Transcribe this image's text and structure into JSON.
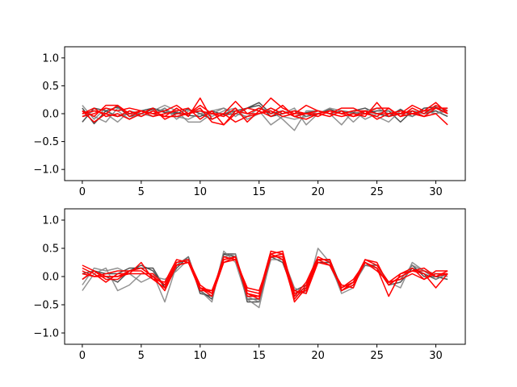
{
  "colors": {
    "dark_series": "#333333",
    "gray_series": "#7f7f7f",
    "red_series": "#ff0000",
    "axes_edge": "#000000"
  },
  "chart_data": [
    {
      "type": "line",
      "xlim": [
        -1.5,
        32.5
      ],
      "ylim": [
        -1.2,
        1.2
      ],
      "xticks": [
        0,
        5,
        10,
        15,
        20,
        25,
        30
      ],
      "xtick_labels": [
        "0",
        "5",
        "10",
        "15",
        "20",
        "25",
        "30"
      ],
      "yticks": [
        -1.0,
        -0.5,
        0.0,
        0.5,
        1.0
      ],
      "ytick_labels": [
        "−1.0",
        "−0.5",
        "0.0",
        "0.5",
        "1.0"
      ],
      "grid": false,
      "x": [
        0,
        1,
        2,
        3,
        4,
        5,
        6,
        7,
        8,
        9,
        10,
        11,
        12,
        13,
        14,
        15,
        16,
        17,
        18,
        19,
        20,
        21,
        22,
        23,
        24,
        25,
        26,
        27,
        28,
        29,
        30,
        31
      ],
      "series": [
        {
          "color": "dark_series",
          "values": [
            -0.15,
            0.1,
            0.05,
            0.12,
            -0.05,
            0.0,
            0.08,
            0.05,
            0.02,
            -0.03,
            -0.05,
            0.05,
            -0.02,
            0.0,
            0.1,
            0.2,
            0.0,
            0.05,
            -0.05,
            0.02,
            0.05,
            0.0,
            0.05,
            0.02,
            0.0,
            0.05,
            0.05,
            -0.15,
            0.05,
            0.0,
            0.05,
            -0.05
          ]
        },
        {
          "color": "dark_series",
          "values": [
            0.1,
            -0.18,
            0.05,
            -0.05,
            0.0,
            0.05,
            0.1,
            0.02,
            0.0,
            0.08,
            0.0,
            -0.1,
            0.0,
            0.05,
            0.1,
            0.15,
            -0.05,
            0.0,
            0.05,
            -0.05,
            0.0,
            0.08,
            0.0,
            0.05,
            0.1,
            0.0,
            -0.05,
            0.08,
            -0.05,
            0.1,
            0.12,
            0.0
          ]
        },
        {
          "color": "gray_series",
          "values": [
            0.15,
            -0.1,
            0.1,
            0.05,
            -0.1,
            0.05,
            0.0,
            0.1,
            -0.05,
            -0.1,
            0.0,
            0.05,
            0.1,
            -0.05,
            0.1,
            0.05,
            -0.2,
            -0.05,
            -0.1,
            -0.05,
            0.05,
            0.0,
            -0.2,
            0.05,
            -0.1,
            0.0,
            0.05,
            0.0,
            0.05,
            0.0,
            0.1,
            0.0
          ]
        },
        {
          "color": "gray_series",
          "values": [
            0.05,
            -0.05,
            -0.15,
            0.1,
            0.0,
            -0.05,
            0.05,
            0.15,
            0.05,
            -0.15,
            -0.15,
            0.0,
            0.1,
            0.0,
            -0.05,
            0.1,
            0.05,
            -0.1,
            -0.3,
            0.05,
            0.05,
            0.0,
            0.05,
            -0.15,
            0.05,
            -0.05,
            -0.15,
            0.05,
            0.0,
            0.05,
            0.0,
            0.1
          ]
        },
        {
          "color": "gray_series",
          "values": [
            -0.05,
            0.05,
            0.0,
            -0.15,
            0.05,
            0.0,
            -0.05,
            0.1,
            -0.1,
            0.05,
            0.05,
            -0.05,
            0.05,
            0.1,
            -0.1,
            0.0,
            0.1,
            0.0,
            0.1,
            -0.2,
            0.0,
            0.1,
            0.05,
            0.0,
            0.05,
            0.1,
            0.0,
            0.0,
            -0.05,
            0.05,
            0.0,
            0.05
          ]
        },
        {
          "color": "red_series",
          "values": [
            0.0,
            0.05,
            0.0,
            0.15,
            -0.05,
            0.05,
            0.0,
            -0.05,
            0.1,
            -0.05,
            0.28,
            -0.1,
            0.0,
            0.22,
            0.0,
            0.0,
            0.1,
            0.0,
            0.05,
            0.0,
            0.05,
            0.0,
            0.1,
            0.1,
            0.0,
            0.1,
            0.1,
            -0.05,
            0.0,
            0.05,
            0.2,
            0.0
          ]
        },
        {
          "color": "red_series",
          "values": [
            0.05,
            -0.05,
            0.15,
            0.15,
            0.0,
            0.05,
            0.0,
            0.05,
            0.15,
            0.0,
            0.1,
            -0.15,
            -0.2,
            0.0,
            0.1,
            0.05,
            0.28,
            0.1,
            0.0,
            0.15,
            0.05,
            0.0,
            -0.05,
            0.0,
            -0.05,
            0.2,
            -0.05,
            0.0,
            0.15,
            0.05,
            0.1,
            0.1
          ]
        },
        {
          "color": "red_series",
          "values": [
            -0.05,
            0.0,
            0.1,
            0.05,
            0.1,
            0.05,
            -0.05,
            0.0,
            0.05,
            0.1,
            -0.1,
            0.05,
            -0.2,
            0.05,
            0.0,
            0.1,
            0.0,
            0.15,
            -0.05,
            -0.1,
            0.0,
            -0.05,
            0.05,
            -0.05,
            0.0,
            -0.05,
            0.1,
            -0.05,
            0.1,
            0.0,
            0.15,
            0.05
          ]
        },
        {
          "color": "red_series",
          "values": [
            0.05,
            -0.15,
            0.0,
            -0.05,
            0.05,
            -0.05,
            0.05,
            -0.05,
            -0.05,
            0.0,
            0.15,
            0.0,
            -0.05,
            0.1,
            -0.15,
            0.05,
            -0.05,
            0.05,
            -0.05,
            0.0,
            -0.05,
            0.05,
            0.0,
            0.05,
            0.05,
            -0.1,
            0.0,
            0.05,
            0.0,
            -0.05,
            0.0,
            -0.2
          ]
        },
        {
          "color": "red_series",
          "values": [
            0.0,
            0.1,
            -0.05,
            0.0,
            -0.1,
            0.0,
            0.1,
            -0.1,
            0.0,
            0.0,
            0.05,
            0.0,
            0.0,
            -0.15,
            -0.05,
            0.0,
            0.05,
            -0.05,
            0.0,
            0.0,
            0.0,
            0.05,
            0.0,
            -0.05,
            0.05,
            0.0,
            0.0,
            0.0,
            0.05,
            -0.05,
            0.1,
            0.0
          ]
        }
      ]
    },
    {
      "type": "line",
      "xlim": [
        -1.5,
        32.5
      ],
      "ylim": [
        -1.2,
        1.2
      ],
      "xticks": [
        0,
        5,
        10,
        15,
        20,
        25,
        30
      ],
      "xtick_labels": [
        "0",
        "5",
        "10",
        "15",
        "20",
        "25",
        "30"
      ],
      "yticks": [
        -1.0,
        -0.5,
        0.0,
        0.5,
        1.0
      ],
      "ytick_labels": [
        "−1.0",
        "−0.5",
        "0.0",
        "0.5",
        "1.0"
      ],
      "grid": false,
      "x": [
        0,
        1,
        2,
        3,
        4,
        5,
        6,
        7,
        8,
        9,
        10,
        11,
        12,
        13,
        14,
        15,
        16,
        17,
        18,
        19,
        20,
        21,
        22,
        23,
        24,
        25,
        26,
        27,
        28,
        29,
        30,
        31
      ],
      "series": [
        {
          "color": "dark_series",
          "values": [
            0.05,
            0.1,
            0.0,
            -0.1,
            0.1,
            0.2,
            0.1,
            -0.2,
            0.2,
            0.35,
            -0.25,
            -0.4,
            0.4,
            0.4,
            -0.45,
            -0.45,
            0.4,
            0.3,
            -0.25,
            -0.15,
            0.3,
            0.3,
            -0.2,
            -0.1,
            0.2,
            0.2,
            -0.1,
            -0.05,
            0.2,
            0.0,
            0.0,
            -0.05
          ]
        },
        {
          "color": "dark_series",
          "values": [
            -0.05,
            0.1,
            0.05,
            0.05,
            0.15,
            0.15,
            0.15,
            -0.2,
            0.15,
            0.35,
            -0.3,
            -0.35,
            0.4,
            0.35,
            -0.4,
            -0.4,
            0.35,
            0.25,
            -0.3,
            -0.2,
            0.25,
            0.25,
            -0.25,
            -0.15,
            0.25,
            0.15,
            -0.15,
            -0.1,
            0.15,
            0.05,
            -0.05,
            0.05
          ]
        },
        {
          "color": "gray_series",
          "values": [
            -0.25,
            0.05,
            0.15,
            -0.25,
            -0.15,
            0.05,
            0.05,
            -0.45,
            0.2,
            0.35,
            -0.25,
            -0.45,
            0.45,
            0.25,
            -0.4,
            -0.55,
            0.35,
            0.35,
            -0.2,
            -0.3,
            0.5,
            0.25,
            -0.3,
            -0.2,
            0.3,
            0.2,
            -0.1,
            -0.2,
            0.25,
            0.1,
            -0.05,
            0.05
          ]
        },
        {
          "color": "gray_series",
          "values": [
            -0.15,
            0.15,
            0.1,
            0.15,
            0.05,
            -0.1,
            0.0,
            -0.05,
            0.1,
            0.3,
            -0.2,
            -0.35,
            0.35,
            0.4,
            -0.35,
            -0.45,
            0.3,
            0.3,
            -0.35,
            -0.25,
            0.3,
            0.2,
            -0.25,
            -0.15,
            0.2,
            0.15,
            -0.1,
            -0.05,
            0.2,
            0.1,
            0.05,
            0.0
          ]
        },
        {
          "color": "red_series",
          "values": [
            0.15,
            0.05,
            -0.1,
            0.05,
            0.05,
            0.25,
            -0.05,
            -0.1,
            0.3,
            0.25,
            -0.2,
            -0.25,
            0.3,
            0.35,
            -0.25,
            -0.3,
            0.45,
            0.4,
            -0.45,
            -0.2,
            0.3,
            0.2,
            -0.15,
            -0.2,
            0.3,
            0.2,
            -0.1,
            0.05,
            0.15,
            -0.05,
            0.1,
            0.1
          ]
        },
        {
          "color": "red_series",
          "values": [
            0.1,
            0.0,
            0.05,
            0.1,
            0.1,
            0.15,
            0.0,
            -0.15,
            0.25,
            0.3,
            -0.2,
            -0.3,
            0.35,
            0.3,
            -0.3,
            -0.4,
            0.4,
            0.45,
            -0.35,
            -0.1,
            0.35,
            0.25,
            -0.2,
            -0.05,
            0.25,
            0.15,
            -0.35,
            0.05,
            0.1,
            0.15,
            0.0,
            0.05
          ]
        },
        {
          "color": "red_series",
          "values": [
            0.2,
            0.1,
            -0.05,
            -0.05,
            0.1,
            0.1,
            -0.05,
            -0.2,
            0.2,
            0.25,
            -0.25,
            -0.25,
            0.25,
            0.3,
            -0.2,
            -0.25,
            0.35,
            0.35,
            -0.25,
            -0.3,
            0.25,
            0.2,
            -0.2,
            -0.1,
            0.25,
            0.1,
            -0.1,
            -0.05,
            0.05,
            -0.05,
            0.05,
            0.05
          ]
        },
        {
          "color": "red_series",
          "values": [
            0.05,
            0.0,
            0.0,
            0.0,
            0.05,
            0.05,
            0.05,
            -0.15,
            0.25,
            0.3,
            -0.15,
            -0.3,
            0.3,
            0.35,
            -0.3,
            -0.35,
            0.4,
            0.3,
            -0.4,
            -0.15,
            0.3,
            0.3,
            -0.25,
            -0.15,
            0.25,
            0.15,
            -0.15,
            0.0,
            0.1,
            0.05,
            -0.2,
            0.05
          ]
        },
        {
          "color": "red_series",
          "values": [
            -0.05,
            0.1,
            0.0,
            0.0,
            0.1,
            0.15,
            0.0,
            -0.25,
            0.2,
            0.25,
            -0.2,
            -0.35,
            0.25,
            0.35,
            -0.35,
            -0.35,
            0.35,
            0.4,
            -0.3,
            -0.25,
            0.3,
            0.3,
            -0.25,
            -0.1,
            0.3,
            0.25,
            -0.15,
            0.0,
            0.1,
            0.1,
            0.0,
            0.1
          ]
        }
      ]
    }
  ]
}
